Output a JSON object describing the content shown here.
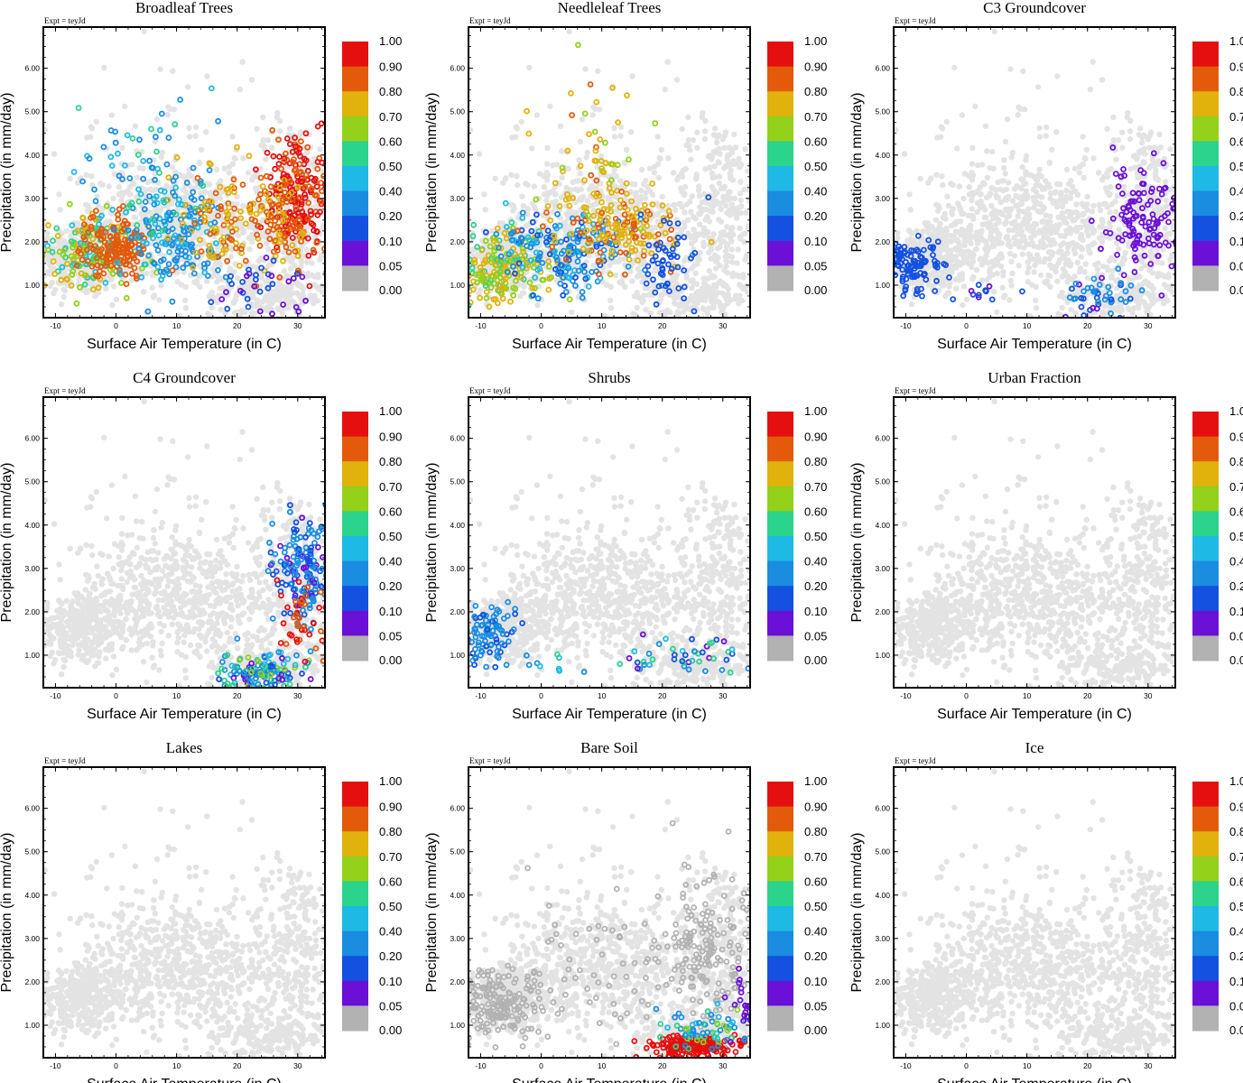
{
  "figure": {
    "expt_label": "Expt = teyJd",
    "xlabel": "Surface Air Temperature (in C)",
    "ylabel": "Precipitation (in mm/day)",
    "xlim": [
      -12,
      34.5
    ],
    "ylim": [
      0.25,
      6.95
    ],
    "xticks": [
      "-10",
      "0",
      "10",
      "20",
      "30"
    ],
    "yticks": [
      "1.00",
      "2.00",
      "3.00",
      "4.00",
      "5.00",
      "6.00"
    ],
    "colorbar": {
      "labels": [
        "1.00",
        "0.90",
        "0.80",
        "0.70",
        "0.60",
        "0.50",
        "0.40",
        "0.20",
        "0.10",
        "0.05",
        "0.00"
      ],
      "colors": [
        "#e50f0f",
        "#e35a0b",
        "#e0b20b",
        "#93d11a",
        "#2bd38c",
        "#1fb9e6",
        "#1a8de0",
        "#1451e0",
        "#6b10d6",
        "#b2b2b2"
      ]
    },
    "background_point_color": "#e3e3e3"
  },
  "chart_data": [
    {
      "type": "scatter",
      "title": "Broadleaf Trees",
      "xlabel": "Surface Air Temperature (in C)",
      "ylabel": "Precipitation (in mm/day)",
      "xlim": [
        -12,
        34.5
      ],
      "ylim": [
        0.25,
        6.95
      ],
      "colorbar_range": [
        0,
        1
      ],
      "highlight": [
        {
          "cx": -4,
          "cy": 1.8,
          "sx": 4,
          "sy": 0.45,
          "n": 170,
          "v": [
            0.45,
            0.8
          ]
        },
        {
          "cx": 0,
          "cy": 1.85,
          "sx": 3,
          "sy": 0.35,
          "n": 150,
          "v": [
            0.8,
            0.85
          ]
        },
        {
          "cx": 10,
          "cy": 2.2,
          "sx": 4,
          "sy": 0.6,
          "n": 170,
          "v": [
            0.2,
            0.5
          ]
        },
        {
          "cx": 18,
          "cy": 2.5,
          "sx": 4,
          "sy": 0.6,
          "n": 110,
          "v": [
            0.7,
            0.85
          ]
        },
        {
          "cx": 30,
          "cy": 3.1,
          "sx": 3,
          "sy": 0.7,
          "n": 200,
          "v": [
            0.85,
            1.0
          ]
        },
        {
          "cx": 27,
          "cy": 2.4,
          "sx": 4,
          "sy": 0.6,
          "n": 90,
          "v": [
            0.75,
            0.88
          ]
        },
        {
          "cx": 5,
          "cy": 3.7,
          "sx": 6,
          "sy": 1.1,
          "n": 60,
          "v": [
            0.2,
            0.6
          ]
        },
        {
          "cx": 24,
          "cy": 0.85,
          "sx": 4,
          "sy": 0.3,
          "n": 35,
          "v": [
            0.05,
            0.2
          ]
        }
      ]
    },
    {
      "type": "scatter",
      "title": "Needleleaf Trees",
      "xlabel": "Surface Air Temperature (in C)",
      "ylabel": "Precipitation (in mm/day)",
      "xlim": [
        -12,
        34.5
      ],
      "ylim": [
        0.25,
        6.95
      ],
      "colorbar_range": [
        0,
        1
      ],
      "highlight": [
        {
          "cx": -7,
          "cy": 1.4,
          "sx": 4,
          "sy": 0.35,
          "n": 200,
          "v": [
            0.55,
            0.8
          ]
        },
        {
          "cx": 4,
          "cy": 1.8,
          "sx": 6,
          "sy": 0.5,
          "n": 180,
          "v": [
            0.1,
            0.5
          ]
        },
        {
          "cx": 14,
          "cy": 2.3,
          "sx": 5,
          "sy": 0.5,
          "n": 150,
          "v": [
            0.7,
            0.85
          ]
        },
        {
          "cx": 8,
          "cy": 3.7,
          "sx": 5,
          "sy": 1.0,
          "n": 60,
          "v": [
            0.65,
            0.85
          ]
        },
        {
          "cx": 21,
          "cy": 1.5,
          "sx": 2.5,
          "sy": 0.5,
          "n": 50,
          "v": [
            0.1,
            0.2
          ]
        }
      ]
    },
    {
      "type": "scatter",
      "title": "C3 Groundcover",
      "xlabel": "Surface Air Temperature (in C)",
      "ylabel": "Precipitation (in mm/day)",
      "xlim": [
        -12,
        34.5
      ],
      "ylim": [
        0.25,
        6.95
      ],
      "colorbar_range": [
        0,
        1
      ],
      "highlight": [
        {
          "cx": -9,
          "cy": 1.5,
          "sx": 2.5,
          "sy": 0.35,
          "n": 110,
          "v": [
            0.1,
            0.2
          ]
        },
        {
          "cx": 29,
          "cy": 2.5,
          "sx": 3,
          "sy": 0.6,
          "n": 120,
          "v": [
            0.05,
            0.1
          ]
        },
        {
          "cx": 22,
          "cy": 0.75,
          "sx": 3,
          "sy": 0.25,
          "n": 45,
          "v": [
            0.05,
            0.4
          ]
        },
        {
          "cx": 2,
          "cy": 0.85,
          "sx": 3,
          "sy": 0.12,
          "n": 10,
          "v": [
            0.05,
            0.2
          ]
        }
      ]
    },
    {
      "type": "scatter",
      "title": "C4 Groundcover",
      "xlabel": "Surface Air Temperature (in C)",
      "ylabel": "Precipitation (in mm/day)",
      "xlim": [
        -12,
        34.5
      ],
      "ylim": [
        0.25,
        6.95
      ],
      "colorbar_range": [
        0,
        1
      ],
      "highlight": [
        {
          "cx": 31,
          "cy": 3.0,
          "sx": 2.5,
          "sy": 0.7,
          "n": 160,
          "v": [
            0.05,
            0.4
          ]
        },
        {
          "cx": 24,
          "cy": 0.6,
          "sx": 4,
          "sy": 0.22,
          "n": 130,
          "v": [
            0.05,
            0.7
          ]
        },
        {
          "cx": 31,
          "cy": 1.8,
          "sx": 2,
          "sy": 0.4,
          "n": 40,
          "v": [
            0.8,
            1.0
          ]
        }
      ]
    },
    {
      "type": "scatter",
      "title": "Shrubs",
      "xlabel": "Surface Air Temperature (in C)",
      "ylabel": "Precipitation (in mm/day)",
      "xlim": [
        -12,
        34.5
      ],
      "ylim": [
        0.25,
        6.95
      ],
      "colorbar_range": [
        0,
        1
      ],
      "highlight": [
        {
          "cx": -9,
          "cy": 1.5,
          "sx": 2.5,
          "sy": 0.35,
          "n": 100,
          "v": [
            0.1,
            0.4
          ]
        },
        {
          "cx": 24,
          "cy": 1.0,
          "sx": 5,
          "sy": 0.25,
          "n": 45,
          "v": [
            0.05,
            0.6
          ]
        },
        {
          "cx": 3,
          "cy": 0.8,
          "sx": 5,
          "sy": 0.1,
          "n": 10,
          "v": [
            0.2,
            0.6
          ]
        }
      ]
    },
    {
      "type": "scatter",
      "title": "Urban Fraction",
      "xlabel": "Surface Air Temperature (in C)",
      "ylabel": "Precipitation (in mm/day)",
      "xlim": [
        -12,
        34.5
      ],
      "ylim": [
        0.25,
        6.95
      ],
      "colorbar_range": [
        0,
        1
      ],
      "highlight": []
    },
    {
      "type": "scatter",
      "title": "Lakes",
      "xlabel": "Surface Air Temperature (in C)",
      "ylabel": "Precipitation (in mm/day)",
      "xlim": [
        -12,
        34.5
      ],
      "ylim": [
        0.25,
        6.95
      ],
      "colorbar_range": [
        0,
        1
      ],
      "highlight": []
    },
    {
      "type": "scatter",
      "title": "Bare Soil",
      "xlabel": "Surface Air Temperature (in C)",
      "ylabel": "Precipitation (in mm/day)",
      "xlim": [
        -12,
        34.5
      ],
      "ylim": [
        0.25,
        6.95
      ],
      "colorbar_range": [
        0,
        1
      ],
      "highlight": [
        {
          "cx": 25,
          "cy": 0.5,
          "sx": 4,
          "sy": 0.15,
          "n": 160,
          "v": [
            0.9,
            1.0
          ]
        },
        {
          "cx": 28,
          "cy": 0.9,
          "sx": 4,
          "sy": 0.25,
          "n": 70,
          "v": [
            0.2,
            0.7
          ]
        },
        {
          "cx": 33,
          "cy": 1.6,
          "sx": 1.2,
          "sy": 0.4,
          "n": 20,
          "v": [
            0.05,
            0.1
          ]
        }
      ],
      "gray": [
        {
          "cx": -7,
          "cy": 1.5,
          "sx": 3.5,
          "sy": 0.4,
          "n": 180
        },
        {
          "cx": 28,
          "cy": 2.8,
          "sx": 4,
          "sy": 0.9,
          "n": 180
        },
        {
          "cx": 10,
          "cy": 2.3,
          "sx": 8,
          "sy": 0.8,
          "n": 60
        }
      ]
    },
    {
      "type": "scatter",
      "title": "Ice",
      "xlabel": "Surface Air Temperature (in C)",
      "ylabel": "Precipitation (in mm/day)",
      "xlim": [
        -12,
        34.5
      ],
      "ylim": [
        0.25,
        6.95
      ],
      "colorbar_range": [
        0,
        1
      ],
      "highlight": []
    }
  ]
}
